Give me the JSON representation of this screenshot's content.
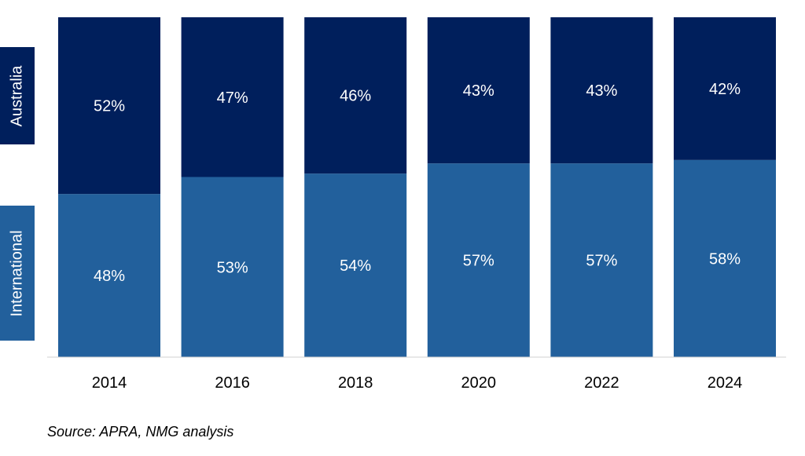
{
  "chart_data": {
    "type": "bar",
    "stacked": true,
    "percent_stacked": true,
    "categories": [
      "2014",
      "2016",
      "2018",
      "2020",
      "2022",
      "2024"
    ],
    "series": [
      {
        "name": "International",
        "values": [
          48,
          53,
          54,
          57,
          57,
          58
        ],
        "labels": [
          "48%",
          "53%",
          "54%",
          "57%",
          "57%",
          "58%"
        ],
        "color": "#22609c"
      },
      {
        "name": "Australia",
        "values": [
          52,
          47,
          46,
          43,
          43,
          42
        ],
        "labels": [
          "52%",
          "47%",
          "46%",
          "43%",
          "43%",
          "42%"
        ],
        "color": "#001f5c"
      }
    ],
    "ylim": [
      0,
      100
    ],
    "grid": false,
    "legend_placement": "left"
  },
  "source": "Source: APRA, NMG analysis"
}
